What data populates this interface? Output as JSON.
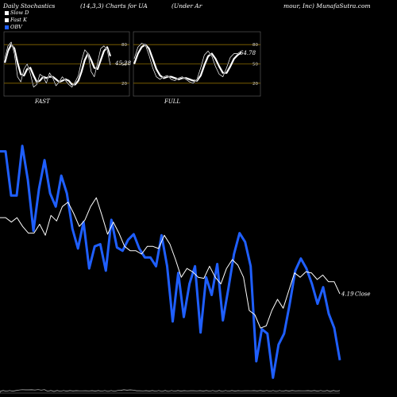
{
  "header": {
    "left": "Daily Stochastics",
    "mid": "(14,3,3) Charts for UA",
    "right_a": "(Under Ar",
    "right_b": "mour, Inc) MunafaSutra.com"
  },
  "legend": [
    {
      "label": "Slow  D",
      "color": "#ffffff"
    },
    {
      "label": "Fast  K",
      "color": "#ffffff"
    },
    {
      "label": "OBV",
      "color": "#1f5fff"
    }
  ],
  "colors": {
    "obv": "#1f5fff",
    "close": "#ffffff",
    "level": "#8a6a00",
    "panel_border": "#666666"
  },
  "chart_data": [
    {
      "type": "line",
      "panel": "FAST",
      "label": "FAST",
      "ylim": [
        0,
        100
      ],
      "yticks": [
        20,
        50,
        80
      ],
      "last_value_label": "45.28",
      "series": [
        {
          "name": "Fast K",
          "values": [
            58,
            78,
            84,
            66,
            30,
            22,
            42,
            50,
            35,
            14,
            18,
            34,
            30,
            20,
            36,
            28,
            16,
            22,
            30,
            24,
            18,
            14,
            22,
            32,
            55,
            72,
            66,
            38,
            30,
            52,
            74,
            78,
            72,
            48
          ]
        },
        {
          "name": "Slow D",
          "values": [
            52,
            70,
            80,
            74,
            52,
            34,
            32,
            42,
            44,
            32,
            22,
            24,
            30,
            28,
            30,
            30,
            26,
            22,
            24,
            26,
            24,
            18,
            18,
            24,
            38,
            56,
            66,
            56,
            44,
            42,
            56,
            70,
            76,
            62
          ]
        }
      ]
    },
    {
      "type": "line",
      "panel": "FULL",
      "label": "FULL",
      "ylim": [
        0,
        100
      ],
      "yticks": [
        20,
        50,
        80
      ],
      "last_value_label": "64.78",
      "series": [
        {
          "name": "Fast K",
          "values": [
            58,
            76,
            82,
            80,
            64,
            44,
            30,
            26,
            30,
            32,
            26,
            24,
            28,
            30,
            26,
            22,
            20,
            26,
            44,
            64,
            70,
            62,
            46,
            34,
            30,
            44,
            60,
            66,
            66,
            70
          ]
        },
        {
          "name": "Slow D",
          "values": [
            50,
            66,
            76,
            80,
            74,
            58,
            42,
            32,
            28,
            30,
            30,
            28,
            26,
            28,
            28,
            26,
            24,
            24,
            32,
            48,
            62,
            66,
            58,
            46,
            36,
            36,
            46,
            58,
            64,
            68
          ]
        }
      ]
    },
    {
      "type": "line",
      "panel": "price",
      "ylim": [
        3.4,
        5.7
      ],
      "last_value_label": "4.19",
      "last_value_suffix": "Close",
      "series": [
        {
          "name": "OBV",
          "values": [
            5.48,
            5.48,
            5.08,
            5.08,
            5.53,
            5.22,
            4.76,
            5.14,
            5.4,
            5.1,
            4.98,
            5.26,
            5.1,
            4.78,
            4.6,
            4.84,
            4.42,
            4.62,
            4.64,
            4.4,
            4.86,
            4.61,
            4.58,
            4.68,
            4.73,
            4.6,
            4.52,
            4.52,
            4.44,
            4.72,
            4.44,
            3.94,
            4.38,
            3.98,
            4.28,
            4.44,
            3.84,
            4.34,
            4.18,
            4.46,
            3.95,
            4.24,
            4.55,
            4.74,
            4.66,
            4.44,
            3.58,
            3.87,
            3.83,
            3.43,
            3.73,
            3.83,
            4.1,
            4.4,
            4.51,
            4.42,
            4.28,
            4.1,
            4.25,
            4.01,
            3.88,
            3.59
          ]
        },
        {
          "name": "Close",
          "values": [
            4.88,
            4.88,
            4.84,
            4.88,
            4.8,
            4.74,
            4.74,
            4.82,
            4.72,
            4.9,
            4.85,
            4.98,
            5.02,
            4.92,
            4.8,
            4.86,
            4.98,
            5.06,
            4.9,
            4.73,
            4.84,
            4.74,
            4.62,
            4.58,
            4.58,
            4.55,
            4.62,
            4.62,
            4.6,
            4.72,
            4.64,
            4.5,
            4.34,
            4.42,
            4.39,
            4.34,
            4.33,
            4.44,
            4.34,
            4.28,
            4.42,
            4.5,
            4.45,
            4.34,
            4.04,
            4.0,
            3.88,
            3.9,
            4.04,
            4.14,
            4.06,
            4.22,
            4.38,
            4.34,
            4.39,
            4.38,
            4.32,
            4.36,
            4.3,
            4.3,
            4.19
          ]
        }
      ]
    }
  ]
}
